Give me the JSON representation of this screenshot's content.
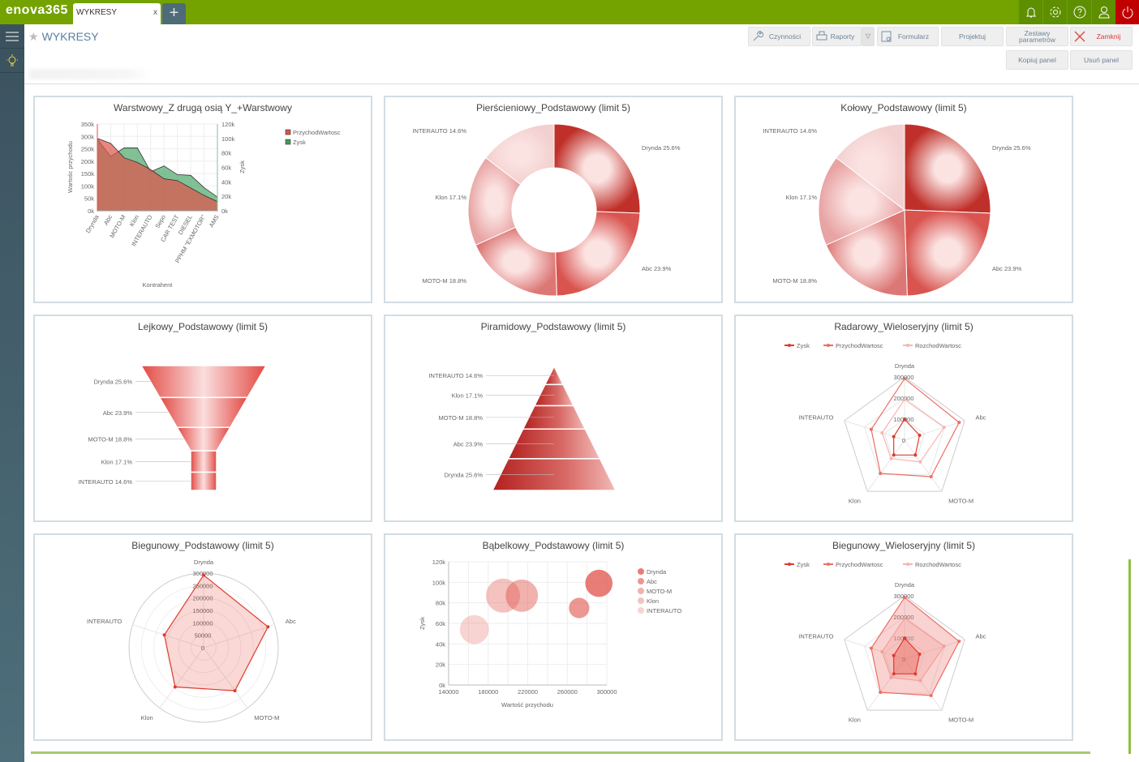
{
  "app": {
    "logo": "enova365",
    "tab_label": "WYKRESY",
    "tab_close": "x",
    "new_tab": "+"
  },
  "header": {
    "title": "WYKRESY"
  },
  "toolbar": {
    "czynnosci": "Czynności",
    "raporty": "Raporty",
    "formularz": "Formularz",
    "projektuj": "Projektuj",
    "zestawy": "Zestawy parametrów",
    "zamknij": "Zamknij",
    "kopiuj": "Kopiuj panel",
    "usun": "Usuń panel"
  },
  "colors": {
    "brand_green": "#74a300",
    "power_red": "#c00000",
    "accent_red": "#e03a2f",
    "zysk_green": "#3f9e5e"
  },
  "chart_data": [
    {
      "type": "area",
      "title": "Warstwowy_Z drugą osią Y_+Warstwowy",
      "xlabel": "Kontrahent",
      "ylabel": "Wartośc przychodu",
      "y2label": "Zysk",
      "categories": [
        "Drynda",
        "Abc",
        "MOTO-M",
        "Klon",
        "INTERAUTO",
        "Sepo",
        "CAR TEST",
        "DIESEL",
        "PPHM \"EXMOTOR\"",
        "AMS"
      ],
      "ylim": [
        0,
        350000
      ],
      "y2lim": [
        0,
        120000
      ],
      "yticks": [
        "0k",
        "50k",
        "100k",
        "150k",
        "200k",
        "250k",
        "300k",
        "350k"
      ],
      "y2ticks": [
        "0k",
        "20k",
        "40k",
        "60k",
        "80k",
        "100k",
        "120k"
      ],
      "series": [
        {
          "name": "Zysk",
          "axis": "right",
          "values": [
            99000,
            75000,
            87000,
            87000,
            54000,
            62000,
            50000,
            49000,
            32000,
            19000
          ]
        },
        {
          "name": "PrzychodWartosc",
          "axis": "left",
          "values": [
            292000,
            272000,
            214000,
            195000,
            166000,
            129000,
            122000,
            92000,
            62000,
            37000
          ]
        }
      ],
      "legend": [
        "PrzychodWartosc",
        "Zysk"
      ],
      "legend_position": "top-right",
      "grid": true
    },
    {
      "type": "pie",
      "variant": "donut",
      "title": "Pierścieniowy_Podstawowy (limit 5)",
      "categories": [
        "Drynda",
        "Abc",
        "MOTO-M",
        "Klon",
        "INTERAUTO"
      ],
      "values": [
        25.6,
        23.9,
        18.8,
        17.1,
        14.6
      ],
      "labels": [
        "Drynda 25.6%",
        "Abc 23.9%",
        "MOTO-M 18.8%",
        "Klon 17.1%",
        "INTERAUTO 14.6%"
      ]
    },
    {
      "type": "pie",
      "title": "Kołowy_Podstawowy (limit 5)",
      "categories": [
        "Drynda",
        "Abc",
        "MOTO-M",
        "Klon",
        "INTERAUTO"
      ],
      "values": [
        25.6,
        23.9,
        18.8,
        17.1,
        14.6
      ],
      "labels": [
        "Drynda 25.6%",
        "Abc 23.9%",
        "MOTO-M 18.8%",
        "Klon 17.1%",
        "INTERAUTO 14.6%"
      ]
    },
    {
      "type": "funnel",
      "title": "Lejkowy_Podstawowy (limit 5)",
      "categories": [
        "Drynda",
        "Abc",
        "MOTO-M",
        "Klon",
        "INTERAUTO"
      ],
      "values": [
        25.6,
        23.9,
        18.8,
        17.1,
        14.6
      ],
      "labels": [
        "Drynda 25.6%",
        "Abc 23.9%",
        "MOTO-M 18.8%",
        "Klon 17.1%",
        "INTERAUTO 14.6%"
      ]
    },
    {
      "type": "pyramid",
      "title": "Piramidowy_Podstawowy (limit 5)",
      "categories": [
        "INTERAUTO",
        "Klon",
        "MOTO-M",
        "Abc",
        "Drynda"
      ],
      "values": [
        14.6,
        17.1,
        18.8,
        23.9,
        25.6
      ],
      "labels": [
        "INTERAUTO 14.6%",
        "Klon 17.1%",
        "MOTO-M 18.8%",
        "Abc 23.9%",
        "Drynda 25.6%"
      ]
    },
    {
      "type": "radar",
      "title": "Radarowy_Wieloseryjny (limit 5)",
      "categories": [
        "Drynda",
        "Abc",
        "MOTO-M",
        "Klon",
        "INTERAUTO"
      ],
      "rticks": [
        "0",
        "100000",
        "200000",
        "300000"
      ],
      "rmax": 300000,
      "filled": false,
      "series": [
        {
          "name": "Zysk",
          "values": [
            99000,
            75000,
            87000,
            87000,
            54000
          ]
        },
        {
          "name": "PrzychodWartosc",
          "values": [
            292000,
            272000,
            214000,
            195000,
            166000
          ]
        },
        {
          "name": "RozchodWartosc",
          "values": [
            193000,
            197000,
            127000,
            108000,
            112000
          ]
        }
      ]
    },
    {
      "type": "radar",
      "variant": "polar",
      "title": "Biegunowy_Podstawowy (limit 5)",
      "categories": [
        "Drynda",
        "Abc",
        "MOTO-M",
        "Klon",
        "INTERAUTO"
      ],
      "rticks": [
        "0",
        "50000",
        "100000",
        "150000",
        "200000",
        "250000",
        "300000"
      ],
      "rmax": 300000,
      "filled": true,
      "series": [
        {
          "values": [
            292000,
            272000,
            214000,
            195000,
            166000
          ]
        }
      ]
    },
    {
      "type": "scatter",
      "variant": "bubble",
      "title": "Bąbelkowy_Podstawowy (limit 5)",
      "xlabel": "Wartość przychodu",
      "ylabel": "Zysk",
      "xlim": [
        140000,
        300000
      ],
      "ylim": [
        0,
        120000
      ],
      "xticks": [
        "140000",
        "180000",
        "220000",
        "260000",
        "300000"
      ],
      "yticks": [
        "0k",
        "20k",
        "40k",
        "60k",
        "80k",
        "100k",
        "120k"
      ],
      "series": [
        {
          "name": "Drynda",
          "x": 292000,
          "y": 99000,
          "size": 0.8
        },
        {
          "name": "Abc",
          "x": 272000,
          "y": 75000,
          "size": 0.6
        },
        {
          "name": "MOTO-M",
          "x": 214000,
          "y": 87000,
          "size": 0.95
        },
        {
          "name": "Klon",
          "x": 195000,
          "y": 87000,
          "size": 1.0
        },
        {
          "name": "INTERAUTO",
          "x": 166000,
          "y": 54000,
          "size": 0.85
        }
      ]
    },
    {
      "type": "radar",
      "title": "Biegunowy_Wieloseryjny (limit 5)",
      "categories": [
        "Drynda",
        "Abc",
        "MOTO-M",
        "Klon",
        "INTERAUTO"
      ],
      "rticks": [
        "0",
        "100000",
        "200000",
        "300000"
      ],
      "rmax": 300000,
      "filled": true,
      "series": [
        {
          "name": "Zysk",
          "values": [
            99000,
            75000,
            87000,
            87000,
            54000
          ]
        },
        {
          "name": "PrzychodWartosc",
          "values": [
            292000,
            272000,
            214000,
            195000,
            166000
          ]
        },
        {
          "name": "RozchodWartosc",
          "values": [
            193000,
            197000,
            127000,
            108000,
            112000
          ]
        }
      ]
    }
  ]
}
